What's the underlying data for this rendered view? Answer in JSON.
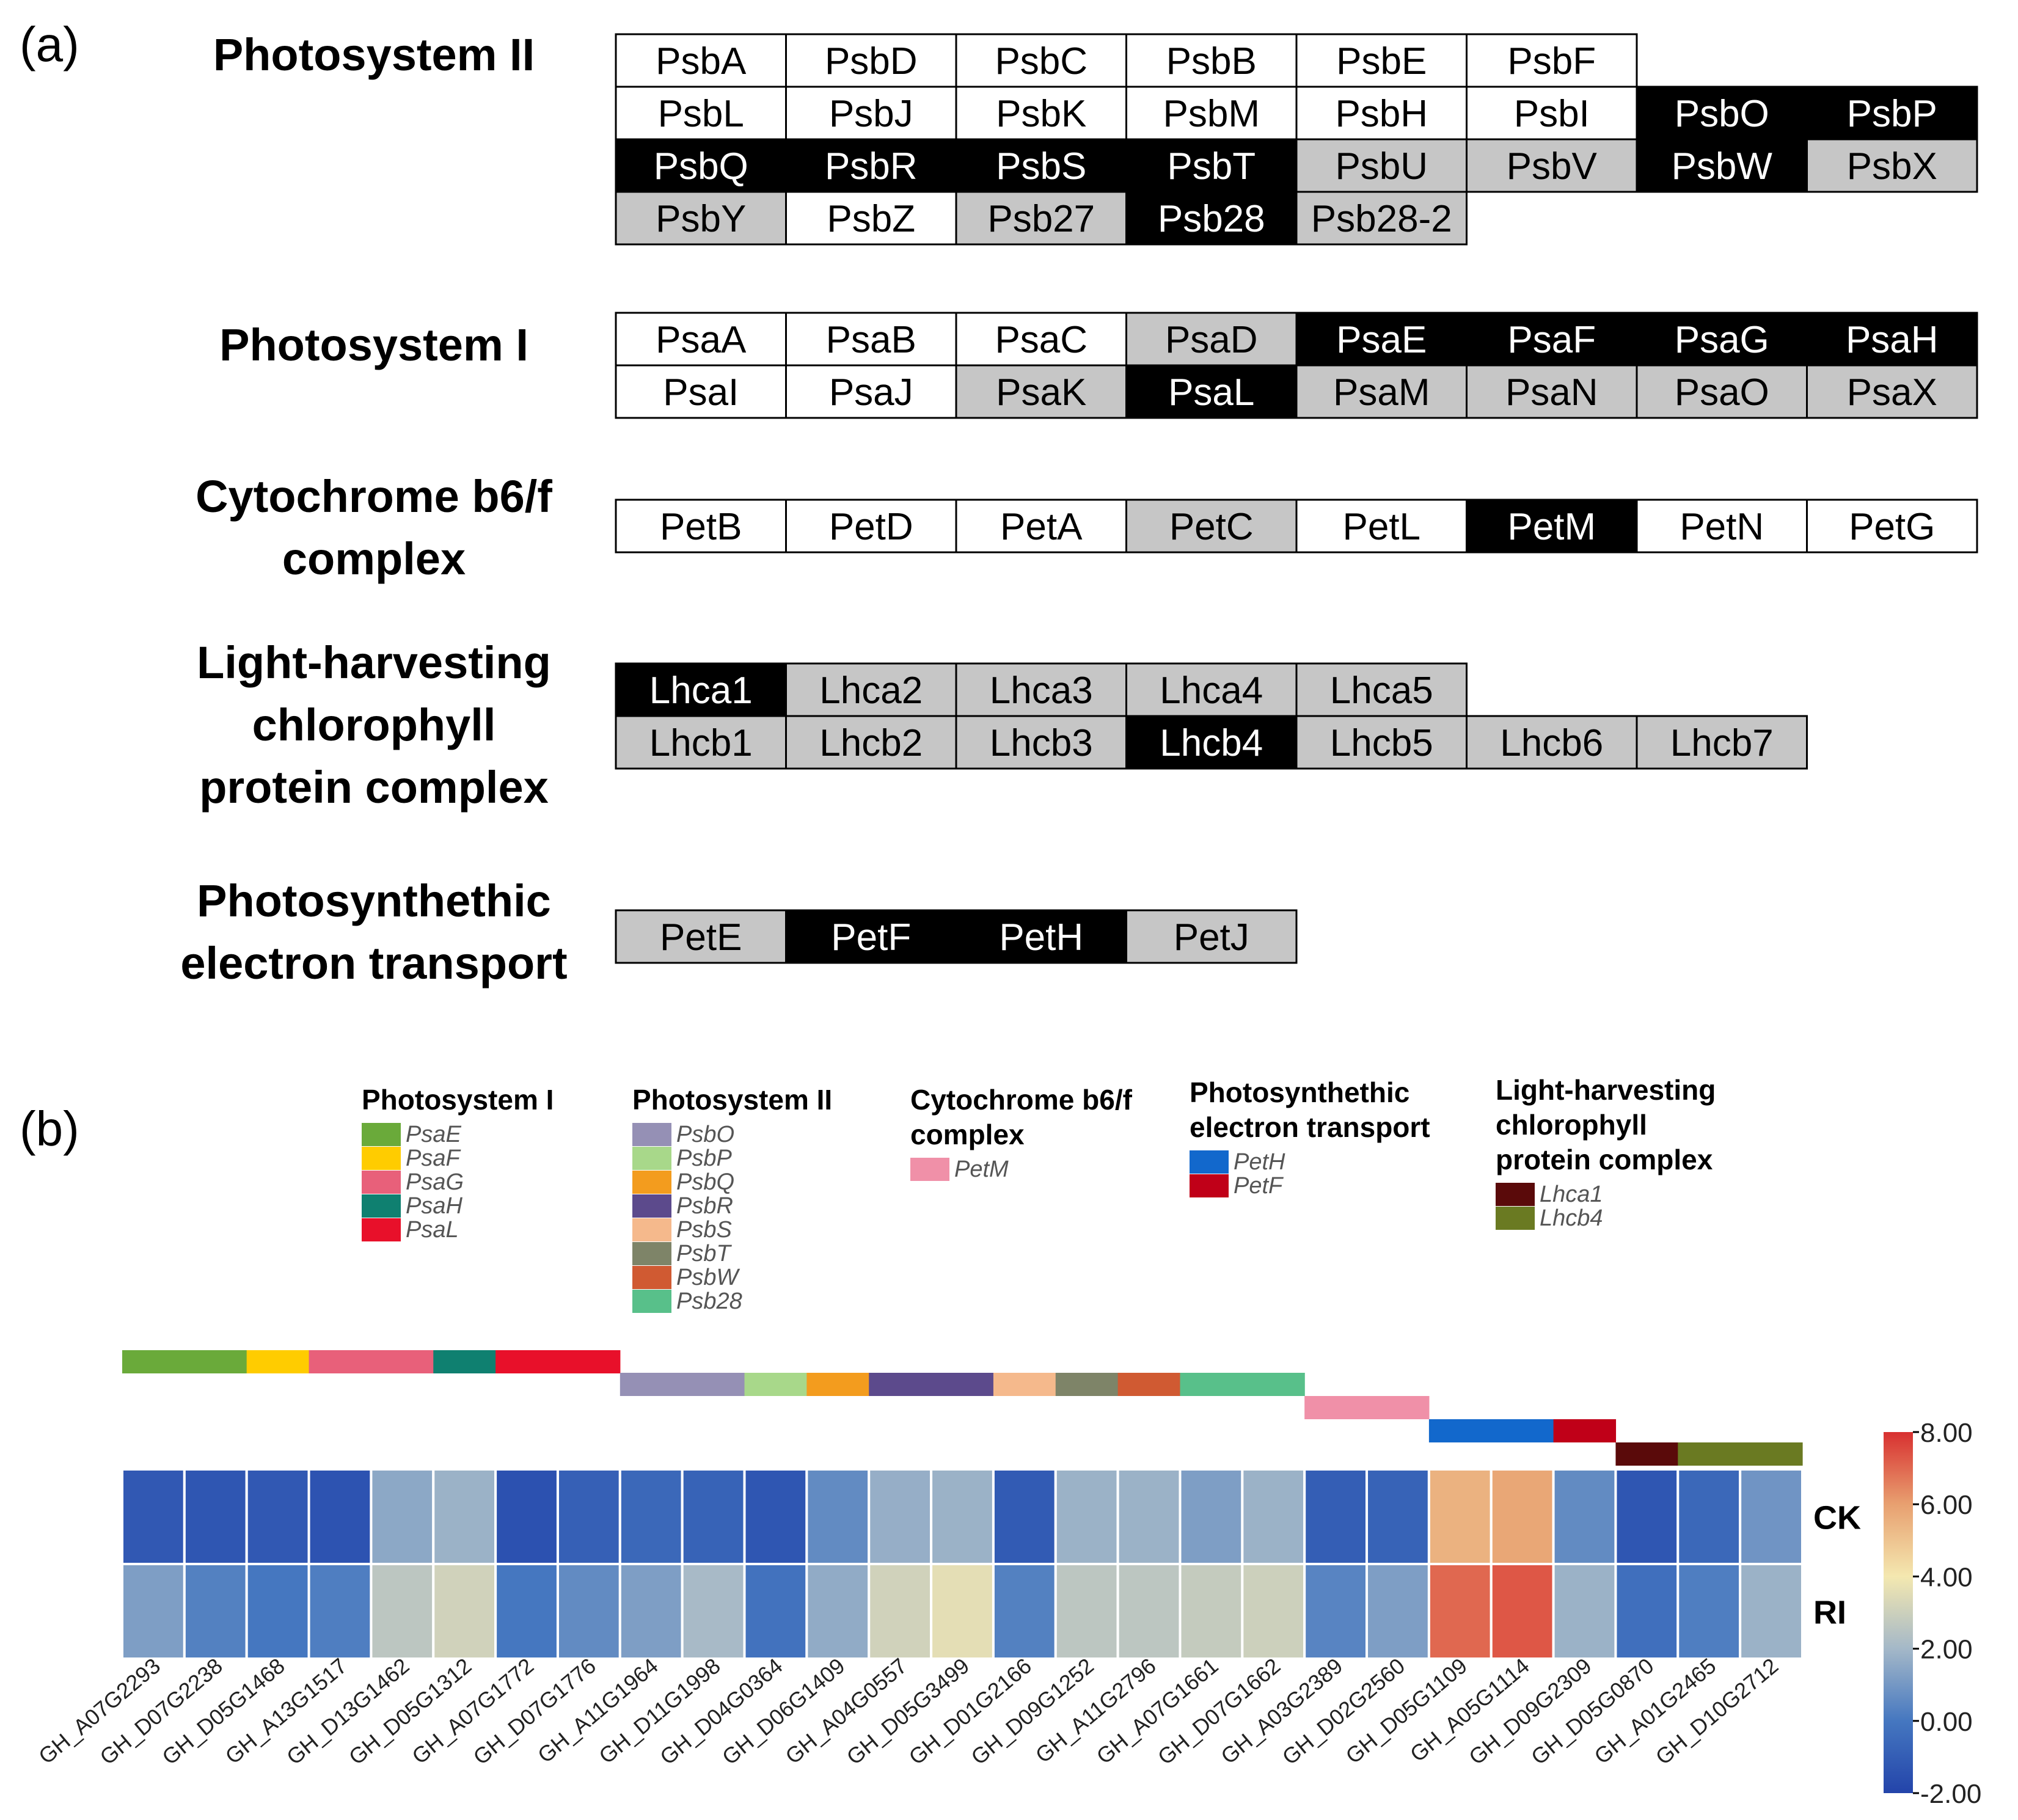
{
  "panel_a": {
    "label": "(a)",
    "groups": [
      {
        "key": "ps2",
        "title": [
          "Photosystem II"
        ],
        "rows": [
          [
            [
              "PsbA",
              "w"
            ],
            [
              "PsbD",
              "w"
            ],
            [
              "PsbC",
              "w"
            ],
            [
              "PsbB",
              "w"
            ],
            [
              "PsbE",
              "w"
            ],
            [
              "PsbF",
              "w"
            ]
          ],
          [
            [
              "PsbL",
              "w"
            ],
            [
              "PsbJ",
              "w"
            ],
            [
              "PsbK",
              "w"
            ],
            [
              "PsbM",
              "w"
            ],
            [
              "PsbH",
              "w"
            ],
            [
              "PsbI",
              "w"
            ],
            [
              "PsbO",
              "b"
            ],
            [
              "PsbP",
              "b"
            ]
          ],
          [
            [
              "PsbQ",
              "b"
            ],
            [
              "PsbR",
              "b"
            ],
            [
              "PsbS",
              "b"
            ],
            [
              "PsbT",
              "b"
            ],
            [
              "PsbU",
              "g"
            ],
            [
              "PsbV",
              "g"
            ],
            [
              "PsbW",
              "b"
            ],
            [
              "PsbX",
              "g"
            ]
          ],
          [
            [
              "PsbY",
              "g"
            ],
            [
              "PsbZ",
              "w"
            ],
            [
              "Psb27",
              "g"
            ],
            [
              "Psb28",
              "b"
            ],
            [
              "Psb28-2",
              "g"
            ]
          ]
        ]
      },
      {
        "key": "ps1",
        "title": [
          "Photosystem I"
        ],
        "rows": [
          [
            [
              "PsaA",
              "w"
            ],
            [
              "PsaB",
              "w"
            ],
            [
              "PsaC",
              "w"
            ],
            [
              "PsaD",
              "g"
            ],
            [
              "PsaE",
              "b"
            ],
            [
              "PsaF",
              "b"
            ],
            [
              "PsaG",
              "b"
            ],
            [
              "PsaH",
              "b"
            ]
          ],
          [
            [
              "PsaI",
              "w"
            ],
            [
              "PsaJ",
              "w"
            ],
            [
              "PsaK",
              "g"
            ],
            [
              "PsaL",
              "b"
            ],
            [
              "PsaM",
              "g"
            ],
            [
              "PsaN",
              "g"
            ],
            [
              "PsaO",
              "g"
            ],
            [
              "PsaX",
              "g"
            ]
          ]
        ]
      },
      {
        "key": "cyt",
        "title": [
          "Cytochrome b6/f",
          "complex"
        ],
        "rows": [
          [
            [
              "PetB",
              "w"
            ],
            [
              "PetD",
              "w"
            ],
            [
              "PetA",
              "w"
            ],
            [
              "PetC",
              "g"
            ],
            [
              "PetL",
              "w"
            ],
            [
              "PetM",
              "b"
            ],
            [
              "PetN",
              "w"
            ],
            [
              "PetG",
              "w"
            ]
          ]
        ]
      },
      {
        "key": "lhc",
        "title": [
          "Light-harvesting",
          "chlorophyll",
          "protein complex"
        ],
        "rows": [
          [
            [
              "Lhca1",
              "b"
            ],
            [
              "Lhca2",
              "g"
            ],
            [
              "Lhca3",
              "g"
            ],
            [
              "Lhca4",
              "g"
            ],
            [
              "Lhca5",
              "g"
            ]
          ],
          [
            [
              "Lhcb1",
              "g"
            ],
            [
              "Lhcb2",
              "g"
            ],
            [
              "Lhcb3",
              "g"
            ],
            [
              "Lhcb4",
              "b"
            ],
            [
              "Lhcb5",
              "g"
            ],
            [
              "Lhcb6",
              "g"
            ],
            [
              "Lhcb7",
              "g"
            ]
          ]
        ]
      },
      {
        "key": "pet",
        "title": [
          "Photosynthethic",
          "electron transport"
        ],
        "rows": [
          [
            [
              "PetE",
              "g"
            ],
            [
              "PetF",
              "b"
            ],
            [
              "PetH",
              "b"
            ],
            [
              "PetJ",
              "g"
            ]
          ]
        ]
      }
    ]
  },
  "panel_b": {
    "label": "(b)",
    "legend": [
      {
        "title": [
          "Photosystem I"
        ],
        "items": [
          [
            "PsaE",
            "#6aaa3a"
          ],
          [
            "PsaF",
            "#ffcc00"
          ],
          [
            "PsaG",
            "#e8607a"
          ],
          [
            "PsaH",
            "#0f8070"
          ],
          [
            "PsaL",
            "#e8102a"
          ]
        ]
      },
      {
        "title": [
          "Photosystem II"
        ],
        "items": [
          [
            "PsbO",
            "#9590b5"
          ],
          [
            "PsbP",
            "#a8d88a"
          ],
          [
            "PsbQ",
            "#f39c1e"
          ],
          [
            "PsbR",
            "#5c4a8c"
          ],
          [
            "PsbS",
            "#f5b98c"
          ],
          [
            "PsbT",
            "#7e8468"
          ],
          [
            "PsbW",
            "#d05a32"
          ],
          [
            "Psb28",
            "#58c08a"
          ]
        ]
      },
      {
        "title": [
          "Cytochrome b6/f",
          "complex"
        ],
        "items": [
          [
            "PetM",
            "#f090a8"
          ]
        ]
      },
      {
        "title": [
          "Photosynthethic",
          "electron transport"
        ],
        "items": [
          [
            "PetH",
            "#1268cc"
          ],
          [
            "PetF",
            "#c00018"
          ]
        ]
      },
      {
        "title": [
          "Light-harvesting",
          "chlorophyll",
          "protein complex"
        ],
        "items": [
          [
            "Lhca1",
            "#5a0a0a"
          ],
          [
            "Lhcb4",
            "#6a7a22"
          ]
        ]
      }
    ],
    "annotation_colors": {
      "PsaE": "#6aaa3a",
      "PsaF": "#ffcc00",
      "PsaG": "#e8607a",
      "PsaH": "#0f8070",
      "PsaL": "#e8102a",
      "PsbO": "#9590b5",
      "PsbP": "#a8d88a",
      "PsbQ": "#f39c1e",
      "PsbR": "#5c4a8c",
      "PsbS": "#f5b98c",
      "PsbT": "#7e8468",
      "PsbW": "#d05a32",
      "Psb28": "#58c08a",
      "PetM": "#f090a8",
      "PetH": "#1268cc",
      "PetF": "#c00018",
      "Lhca1": "#5a0a0a",
      "Lhcb4": "#6a7a22"
    },
    "annotation_group_levels": [
      0,
      0,
      0,
      0,
      0,
      0,
      0,
      0,
      1,
      1,
      1,
      1,
      1,
      1,
      1,
      1,
      1,
      1,
      1,
      2,
      2,
      3,
      3,
      3,
      4,
      4,
      4
    ]
  },
  "chart_data": {
    "type": "heatmap",
    "genes": [
      "GH_A07G2293",
      "GH_D07G2238",
      "GH_D05G1468",
      "GH_A13G1517",
      "GH_D13G1462",
      "GH_D05G1312",
      "GH_A07G1772",
      "GH_D07G1776",
      "GH_A11G1964",
      "GH_D11G1998",
      "GH_D04G0364",
      "GH_D06G1409",
      "GH_A04G0557",
      "GH_D05G3499",
      "GH_D01G2166",
      "GH_D09G1252",
      "GH_A11G2796",
      "GH_A07G1661",
      "GH_D07G1662",
      "GH_A03G2389",
      "GH_D02G2560",
      "GH_D05G1109",
      "GH_A05G1114",
      "GH_D09G2309",
      "GH_D05G0870",
      "GH_A01G2465",
      "GH_D10G2712"
    ],
    "gene_annotation": [
      "PsaE",
      "PsaE",
      "PsaF",
      "PsaG",
      "PsaG",
      "PsaH",
      "PsaL",
      "PsaL",
      "PsbO",
      "PsbO",
      "PsbP",
      "PsbQ",
      "PsbR",
      "PsbR",
      "PsbS",
      "PsbT",
      "PsbW",
      "Psb28",
      "Psb28",
      "PetM",
      "PetM",
      "PetH",
      "PetH",
      "PetF",
      "Lhca1",
      "Lhcb4",
      "Lhcb4"
    ],
    "rows": [
      "CK",
      "RI"
    ],
    "values": [
      [
        -1.2,
        -1.3,
        -1.2,
        -1.4,
        1.5,
        1.8,
        -1.5,
        -0.9,
        -0.6,
        -0.8,
        -1.3,
        0.6,
        1.7,
        1.8,
        -1.1,
        1.8,
        1.8,
        1.2,
        1.8,
        -1.0,
        -0.8,
        5.5,
        5.8,
        0.6,
        -1.3,
        -0.6,
        0.9
      ],
      [
        1.2,
        0.3,
        0.0,
        0.2,
        2.6,
        3.1,
        0.0,
        0.6,
        1.2,
        2.1,
        -0.2,
        1.6,
        3.1,
        3.6,
        0.3,
        2.6,
        2.6,
        2.8,
        3.0,
        0.4,
        1.2,
        7.0,
        7.3,
        1.8,
        -0.3,
        0.2,
        1.8
      ]
    ],
    "scale": {
      "min": -2.0,
      "max": 8.0,
      "ticks": [
        "8.00",
        "6.00",
        "4.00",
        "2.00",
        "0.00",
        "-2.00"
      ],
      "colors": [
        "#2344aa",
        "#4577c0",
        "#a4b8c8",
        "#f4e8b0",
        "#e8a070",
        "#d83030"
      ]
    }
  }
}
